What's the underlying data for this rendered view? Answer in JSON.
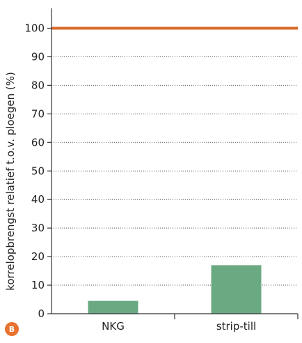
{
  "chart_data": {
    "type": "bar",
    "categories": [
      "NKG",
      "strip-till"
    ],
    "values": [
      4.5,
      17
    ],
    "ylabel": "korrelopbrengst relatief t.o.v. ploegen (%)",
    "xlabel": "",
    "ylim": [
      0,
      110
    ],
    "yticks": [
      0,
      10,
      20,
      30,
      40,
      50,
      60,
      70,
      80,
      90,
      100
    ],
    "reference_line": 100,
    "grid": "horizontal dotted",
    "bar_color": "#6aa982",
    "reference_line_color": "#d9692a"
  },
  "panel_badge": {
    "label": "B",
    "color": "#e8722f"
  }
}
